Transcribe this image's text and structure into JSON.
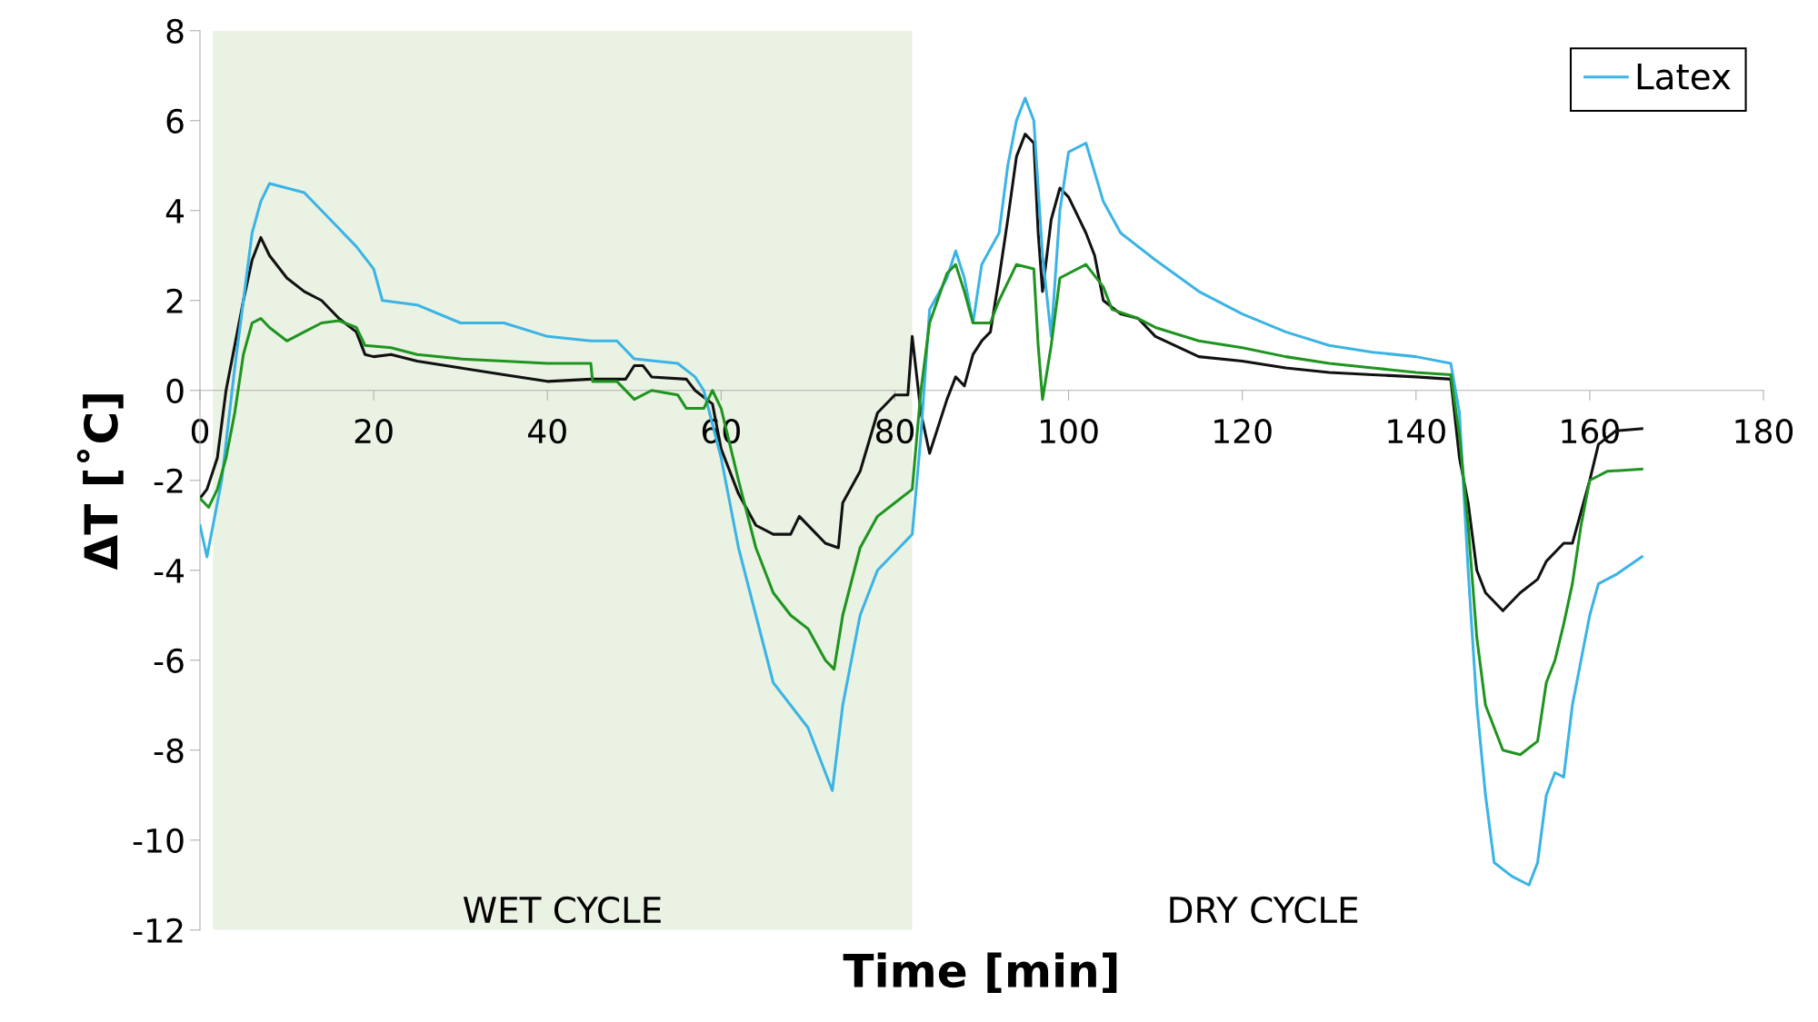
{
  "chart_data": {
    "type": "line",
    "xlabel": "Time [min]",
    "ylabel": "ΔT [˚C]",
    "xlim": [
      0,
      180
    ],
    "xticks": [
      0,
      20,
      40,
      60,
      80,
      100,
      120,
      140,
      160,
      180
    ],
    "ylim": [
      -12,
      8
    ],
    "yticks": [
      -12,
      -10,
      -8,
      -6,
      -4,
      -2,
      0,
      2,
      4,
      6,
      8
    ],
    "grid": false,
    "legend": "top right",
    "marker": "none",
    "line_style": "solid",
    "bands": [
      {
        "axis": "x",
        "from": 1.5,
        "to": 82,
        "label": "WET CYCLE",
        "color": "#eaf2e3"
      }
    ],
    "annotations": [
      "DRY CYCLE"
    ],
    "series": [
      {
        "color": "#111111",
        "x": [
          0,
          0.8,
          2,
          3,
          4,
          5,
          6,
          7,
          8,
          10,
          12,
          14,
          16,
          18,
          19,
          20,
          22,
          25,
          30,
          35,
          40,
          45,
          49,
          50,
          51,
          52,
          56,
          57,
          59,
          60,
          62,
          64,
          66,
          68,
          69,
          71,
          72,
          73.5,
          74,
          76,
          78,
          80,
          81.5,
          82,
          83,
          84,
          86,
          87,
          88,
          89,
          90,
          91,
          92,
          93,
          94,
          95,
          96,
          96.5,
          97,
          98,
          99,
          100,
          102,
          103,
          104,
          106,
          108,
          110,
          115,
          120,
          125,
          130,
          135,
          140,
          144,
          145,
          146,
          147,
          148,
          150,
          152,
          154,
          155,
          157,
          158,
          160,
          161,
          163,
          166
        ],
        "values": [
          -2.4,
          -2.2,
          -1.5,
          0,
          1.0,
          2.0,
          2.9,
          3.4,
          3.0,
          2.5,
          2.2,
          2.0,
          1.6,
          1.3,
          0.8,
          0.75,
          0.8,
          0.65,
          0.5,
          0.35,
          0.2,
          0.25,
          0.25,
          0.55,
          0.55,
          0.3,
          0.25,
          0,
          -0.3,
          -1.3,
          -2.3,
          -3.0,
          -3.2,
          -3.2,
          -2.8,
          -3.2,
          -3.4,
          -3.5,
          -2.5,
          -1.8,
          -0.5,
          -0.1,
          -0.1,
          1.2,
          -0.5,
          -1.4,
          -0.2,
          0.3,
          0.1,
          0.8,
          1.1,
          1.3,
          2.5,
          3.8,
          5.2,
          5.7,
          5.5,
          3.5,
          2.2,
          3.8,
          4.5,
          4.3,
          3.5,
          3.0,
          2.0,
          1.7,
          1.6,
          1.2,
          0.75,
          0.65,
          0.5,
          0.4,
          0.35,
          0.3,
          0.25,
          -1.5,
          -2.5,
          -4,
          -4.5,
          -4.9,
          -4.5,
          -4.2,
          -3.8,
          -3.4,
          -3.4,
          -2,
          -1.2,
          -0.9,
          -0.85
        ]
      },
      {
        "name": "Latex",
        "color": "#3bb4e5",
        "x": [
          0,
          0.8,
          1.5,
          2.5,
          4,
          5,
          6,
          7,
          8,
          10,
          12,
          14,
          16,
          18,
          20,
          21,
          25,
          30,
          35,
          40,
          45,
          48,
          50,
          55,
          57,
          58,
          60,
          62,
          64,
          66,
          68,
          70,
          72,
          72.8,
          74,
          76,
          78,
          80,
          82,
          83,
          84,
          86,
          87,
          88,
          89,
          90,
          92,
          93,
          94,
          95,
          96,
          97,
          98,
          99,
          100,
          102,
          104,
          106,
          110,
          115,
          120,
          125,
          130,
          135,
          140,
          144,
          145,
          146,
          147,
          148,
          149,
          151,
          153,
          154,
          155,
          156,
          157,
          158,
          159,
          160,
          161,
          163,
          166
        ],
        "values": [
          -3.0,
          -3.7,
          -3.0,
          -2.0,
          0.5,
          2.0,
          3.5,
          4.2,
          4.6,
          4.5,
          4.4,
          4.0,
          3.6,
          3.2,
          2.7,
          2.0,
          1.9,
          1.5,
          1.5,
          1.2,
          1.1,
          1.1,
          0.7,
          0.6,
          0.3,
          0,
          -1.5,
          -3.5,
          -5.0,
          -6.5,
          -7.0,
          -7.5,
          -8.5,
          -8.9,
          -7,
          -5,
          -4,
          -3.6,
          -3.2,
          -1,
          1.8,
          2.5,
          3.1,
          2.5,
          1.5,
          2.8,
          3.5,
          5.0,
          6.0,
          6.5,
          6.0,
          3.0,
          1.2,
          4,
          5.3,
          5.5,
          4.2,
          3.5,
          2.9,
          2.2,
          1.7,
          1.3,
          1.0,
          0.85,
          0.75,
          0.6,
          -0.5,
          -4,
          -7,
          -9,
          -10.5,
          -10.8,
          -11.0,
          -10.5,
          -9,
          -8.5,
          -8.6,
          -7,
          -6,
          -5,
          -4.3,
          -4.1,
          -3.7
        ]
      },
      {
        "color": "#1f9420",
        "x": [
          0,
          1,
          2,
          3,
          4,
          5,
          6,
          7,
          8,
          10,
          12,
          14,
          16,
          18,
          19,
          22,
          25,
          30,
          35,
          40,
          45,
          45.2,
          48,
          50,
          52,
          55,
          56,
          58,
          59,
          60,
          62,
          64,
          66,
          68,
          70,
          72,
          73,
          74,
          76,
          78,
          80,
          82,
          83,
          84,
          86,
          87,
          88,
          89,
          91,
          92,
          94,
          96,
          96.5,
          97,
          98,
          99,
          102,
          104,
          105,
          108,
          110,
          115,
          120,
          125,
          130,
          135,
          140,
          144,
          145,
          146,
          147,
          148,
          150,
          152,
          154,
          155,
          156,
          157,
          158,
          159,
          160,
          162,
          166
        ],
        "values": [
          -2.4,
          -2.6,
          -2.2,
          -1.5,
          -0.5,
          0.8,
          1.5,
          1.6,
          1.4,
          1.1,
          1.3,
          1.5,
          1.55,
          1.4,
          1.0,
          0.95,
          0.8,
          0.7,
          0.65,
          0.6,
          0.6,
          0.2,
          0.2,
          -0.2,
          0,
          -0.1,
          -0.4,
          -0.4,
          0,
          -0.4,
          -2,
          -3.5,
          -4.5,
          -5,
          -5.3,
          -6.0,
          -6.2,
          -5,
          -3.5,
          -2.8,
          -2.5,
          -2.2,
          0,
          1.5,
          2.6,
          2.8,
          2.2,
          1.5,
          1.5,
          2.0,
          2.8,
          2.7,
          1.0,
          -0.2,
          1.0,
          2.5,
          2.8,
          2.3,
          1.8,
          1.6,
          1.4,
          1.1,
          0.95,
          0.75,
          0.6,
          0.5,
          0.4,
          0.35,
          -1,
          -3,
          -5.5,
          -7,
          -8.0,
          -8.1,
          -7.8,
          -6.5,
          -6,
          -5.2,
          -4.3,
          -3,
          -2,
          -1.8,
          -1.75
        ]
      }
    ]
  }
}
